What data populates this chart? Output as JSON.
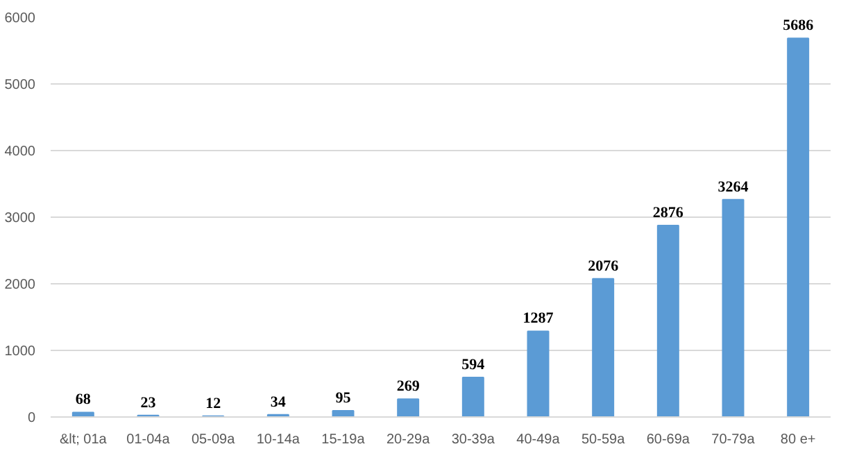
{
  "chart_data": {
    "type": "bar",
    "categories": [
      "&lt; 01a",
      "01-04a",
      "05-09a",
      "10-14a",
      "15-19a",
      "20-29a",
      "30-39a",
      "40-49a",
      "50-59a",
      "60-69a",
      "70-79a",
      "80 e+"
    ],
    "values": [
      68,
      23,
      12,
      34,
      95,
      269,
      594,
      1287,
      2076,
      2876,
      3264,
      5686
    ],
    "color": "#5b9bd5",
    "ylim": [
      0,
      6000
    ],
    "yticks": [
      0,
      1000,
      2000,
      3000,
      4000,
      5000,
      6000
    ],
    "grid": "y",
    "data_labels": true
  }
}
